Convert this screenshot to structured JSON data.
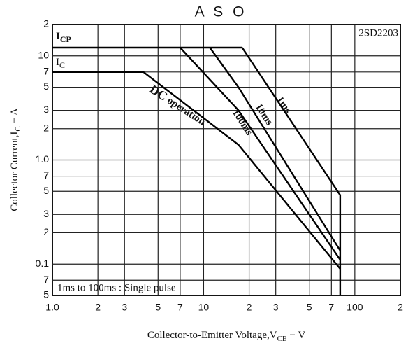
{
  "chart_data": {
    "type": "line",
    "title": "A S O",
    "device": "2SD2203",
    "note": "1ms to 100ms : Single pulse",
    "xlabel": {
      "main": "Collector-to-Emitter Voltage,V",
      "sub": "CE",
      "tail": " − V"
    },
    "ylabel": {
      "main": "Collector Current,I",
      "sub": "C",
      "tail": " − A"
    },
    "xscale": "log",
    "yscale": "log",
    "grid": true,
    "xlim": [
      1,
      200
    ],
    "ylim": [
      0.05,
      20
    ],
    "xticks": [
      {
        "value": 1,
        "label": "1.0"
      },
      2,
      3,
      5,
      7,
      10,
      {
        "value": 20,
        "label": "2"
      },
      {
        "value": 30,
        "label": "3"
      },
      {
        "value": 50,
        "label": "5"
      },
      {
        "value": 70,
        "label": "7"
      },
      100,
      {
        "value": 200,
        "label": "2"
      }
    ],
    "yticks": [
      {
        "value": 20,
        "label": "2"
      },
      10,
      7,
      5,
      3,
      2,
      {
        "value": 1,
        "label": "1.0"
      },
      {
        "value": 0.7,
        "label": "7"
      },
      {
        "value": 0.5,
        "label": "5"
      },
      {
        "value": 0.3,
        "label": "3"
      },
      {
        "value": 0.2,
        "label": "2"
      },
      0.1,
      {
        "value": 0.07,
        "label": "7"
      },
      {
        "value": 0.05,
        "label": "5"
      }
    ],
    "series": [
      {
        "name": {
          "main": "I",
          "sub": "CP"
        },
        "color": "#000000",
        "x": [
          1,
          18
        ],
        "values": [
          12,
          12
        ]
      },
      {
        "name": "1ms",
        "color": "#000000",
        "x": [
          18,
          80,
          80
        ],
        "values": [
          12,
          0.46,
          0.05
        ]
      },
      {
        "name": "10ms",
        "color": "#000000",
        "x": [
          11,
          17,
          80
        ],
        "values": [
          12,
          5,
          0.135
        ]
      },
      {
        "name": "100ms",
        "color": "#000000",
        "x": [
          7,
          17,
          80
        ],
        "values": [
          12,
          3,
          0.11
        ]
      },
      {
        "name": {
          "main": "DC",
          "rest": " operation"
        },
        "color": "#000000",
        "x": [
          1,
          4,
          17,
          80
        ],
        "values": [
          7,
          7,
          1.4,
          0.09
        ]
      }
    ],
    "ic_label": {
      "main": "I",
      "sub": "C"
    }
  }
}
